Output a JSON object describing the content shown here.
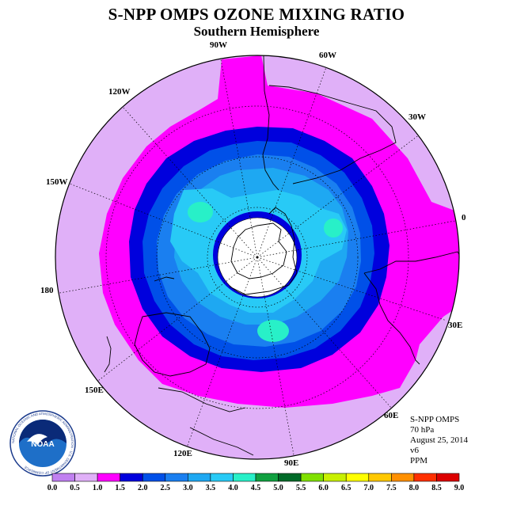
{
  "title": "S-NPP OMPS OZONE MIXING RATIO",
  "subtitle": "Southern Hemisphere",
  "info": {
    "instrument": "S-NPP OMPS",
    "level": "70 hPa",
    "date": "August 25, 2014",
    "version": "v6",
    "units": "PPM"
  },
  "logo": {
    "name": "NOAA",
    "ring_text": "NATIONAL OCEANIC AND ATMOSPHERIC ADMINISTRATION · U.S. DEPARTMENT OF COMMERCE"
  },
  "longitude_labels": [
    "0",
    "30E",
    "60E",
    "90E",
    "120E",
    "150E",
    "180",
    "150W",
    "120W",
    "90W",
    "60W",
    "30W"
  ],
  "colorbar": {
    "ticks": [
      "0.0",
      "0.5",
      "1.0",
      "1.5",
      "2.0",
      "2.5",
      "3.0",
      "3.5",
      "4.0",
      "4.5",
      "5.0",
      "5.5",
      "6.0",
      "6.5",
      "7.0",
      "7.5",
      "8.0",
      "8.5",
      "9.0"
    ],
    "colors": [
      "#c080f0",
      "#e0b0f8",
      "#ff00ff",
      "#0000dd",
      "#0050e8",
      "#1a7ff0",
      "#1ea8f2",
      "#28caf6",
      "#28f0c8",
      "#10a040",
      "#006a28",
      "#80e000",
      "#c8f000",
      "#ffff00",
      "#ffc800",
      "#ff9000",
      "#ff3000",
      "#dc0000",
      "#905838"
    ]
  }
}
